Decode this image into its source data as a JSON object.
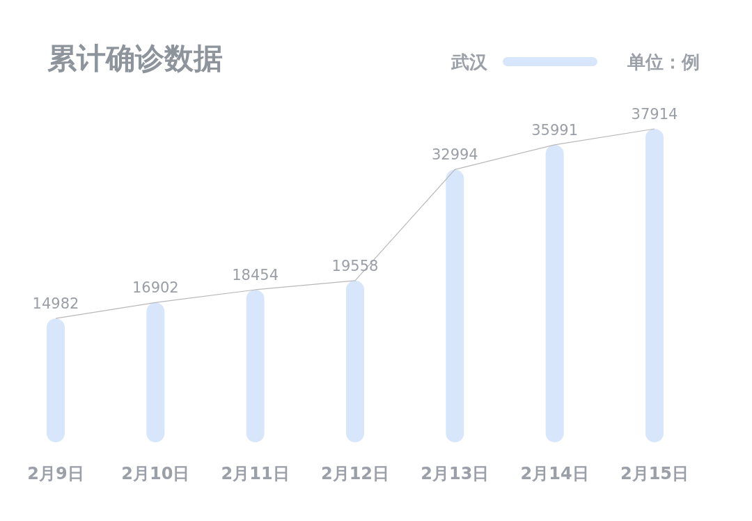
{
  "chart_data": {
    "type": "bar",
    "title": "累计确诊数据",
    "annotations": [
      "单位：例"
    ],
    "categories": [
      "2月9日",
      "2月10日",
      "2月11日",
      "2月12日",
      "2月13日",
      "2月14日",
      "2月15日"
    ],
    "series": [
      {
        "name": "武汉",
        "color": "#d8e6fb",
        "values": [
          14982,
          16902,
          18454,
          19558,
          32994,
          35991,
          37914
        ]
      },
      {
        "type": "line",
        "color": "#b8b8b8",
        "values": [
          14982,
          16902,
          18454,
          19558,
          32994,
          35991,
          37914
        ],
        "value_labels": [
          "14982",
          "16902",
          "18454",
          "19558",
          "32994",
          "35991",
          "37914"
        ]
      }
    ],
    "legend": "top right",
    "grid": false
  }
}
